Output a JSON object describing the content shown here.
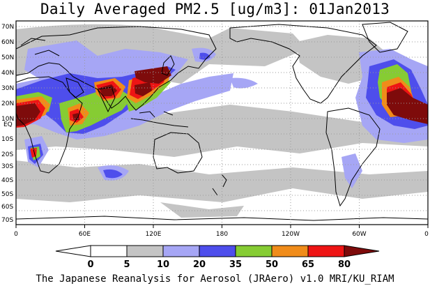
{
  "title": "Daily Averaged PM2.5 [ug/m3]: 01Jan2013",
  "credit": "The Japanese Reanalysis for Aerosol (JRAero) v1.0 MRI/KU_RIAM",
  "map": {
    "lon_labels": [
      "0",
      "60E",
      "120E",
      "180",
      "120W",
      "60W",
      "0"
    ],
    "lat_labels": [
      "70N",
      "60N",
      "50N",
      "40N",
      "30N",
      "20N",
      "10N",
      "EQ",
      "10S",
      "20S",
      "30S",
      "40S",
      "50S",
      "60S",
      "70S"
    ]
  },
  "colorbar": {
    "labels": [
      "0",
      "5",
      "10",
      "20",
      "35",
      "50",
      "65",
      "80"
    ],
    "colors": [
      "#ffffff",
      "#c4c4c4",
      "#a6a6f5",
      "#4e4eec",
      "#86cc33",
      "#f08c1a",
      "#ee1414",
      "#7e0b0b"
    ]
  },
  "colors": {
    "land_outline": "#000000",
    "grid": "#9a9a9a",
    "light_gray": "#c4c4c4",
    "light_blue": "#a6a6f5",
    "blue": "#4e4eec",
    "green": "#86cc33",
    "orange": "#f08c1a",
    "red": "#ee1414",
    "dark_red": "#7e0b0b"
  }
}
